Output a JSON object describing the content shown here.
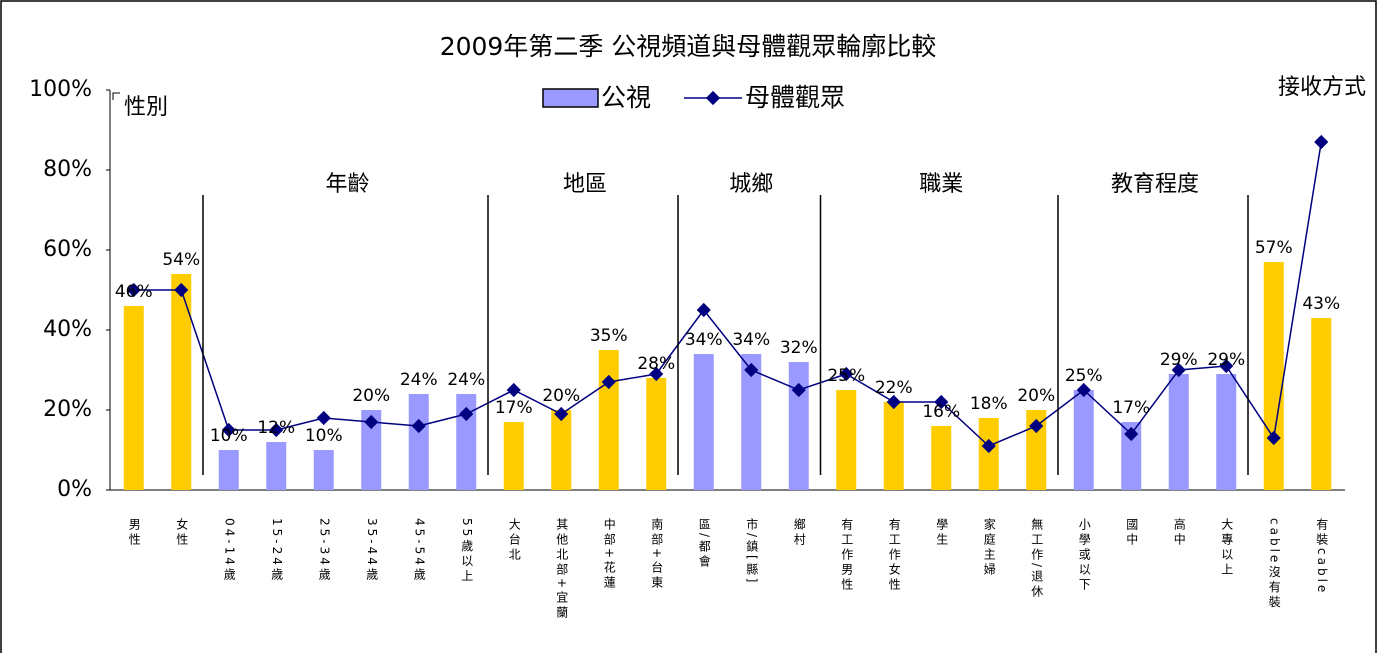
{
  "chart_data": {
    "type": "bar_line",
    "title": "2009年第二季  公視頻道與母體觀眾輪廓比較",
    "categories": [
      "男性",
      "女性",
      "04-14歲",
      "15-24歲",
      "25-34歲",
      "35-44歲",
      "45-54歲",
      "55歲以上",
      "大台北",
      "其他北部+宜蘭",
      "中部+花蓮",
      "南部+台東",
      "區/都會",
      "市/鎮[縣]",
      "鄉村",
      "有工作男性",
      "有工作女性",
      "學生",
      "家庭主婦",
      "無工作/退休",
      "小學或以下",
      "國中",
      "高中",
      "大專以上",
      "cable沒有裝",
      "有裝cable"
    ],
    "groups": [
      {
        "label": "性別",
        "members": 2
      },
      {
        "label": "年齡",
        "members": 6
      },
      {
        "label": "地區",
        "members": 4
      },
      {
        "label": "城鄉",
        "members": 3
      },
      {
        "label": "職業",
        "members": 5
      },
      {
        "label": "教育程度",
        "members": 4
      },
      {
        "label": "接收方式",
        "members": 2
      }
    ],
    "series": [
      {
        "name": "公視",
        "type": "bar",
        "color": "#9999ff",
        "bar_colors": [
          "#ffcc00",
          "#ffcc00",
          "#9999ff",
          "#9999ff",
          "#9999ff",
          "#9999ff",
          "#9999ff",
          "#9999ff",
          "#ffcc00",
          "#ffcc00",
          "#ffcc00",
          "#ffcc00",
          "#9999ff",
          "#9999ff",
          "#9999ff",
          "#ffcc00",
          "#ffcc00",
          "#ffcc00",
          "#ffcc00",
          "#ffcc00",
          "#9999ff",
          "#9999ff",
          "#9999ff",
          "#9999ff",
          "#ffcc00",
          "#ffcc00"
        ],
        "values": [
          46,
          54,
          10,
          12,
          10,
          20,
          24,
          24,
          17,
          20,
          35,
          28,
          34,
          34,
          32,
          25,
          22,
          16,
          18,
          20,
          25,
          17,
          29,
          29,
          57,
          43
        ],
        "value_labels": [
          "46%",
          "54%",
          "10%",
          "12%",
          "10%",
          "20%",
          "24%",
          "24%",
          "17%",
          "20%",
          "35%",
          "28%",
          "34%",
          "34%",
          "32%",
          "25%",
          "22%",
          "16%",
          "18%",
          "20%",
          "25%",
          "17%",
          "29%",
          "29%",
          "57%",
          "43%"
        ]
      },
      {
        "name": "母體觀眾",
        "type": "line",
        "color": "#000080",
        "values": [
          50,
          50,
          15,
          15,
          18,
          17,
          16,
          19,
          25,
          19,
          27,
          29,
          45,
          30,
          25,
          29,
          22,
          22,
          11,
          16,
          25,
          14,
          30,
          31,
          13,
          87
        ]
      }
    ],
    "ylim": [
      0,
      100
    ],
    "yticks": [
      {
        "value": 0,
        "label": "0%"
      },
      {
        "value": 20,
        "label": "20%"
      },
      {
        "value": 40,
        "label": "40%"
      },
      {
        "value": 60,
        "label": "60%"
      },
      {
        "value": 80,
        "label": "80%"
      },
      {
        "value": 100,
        "label": "100%"
      }
    ]
  }
}
